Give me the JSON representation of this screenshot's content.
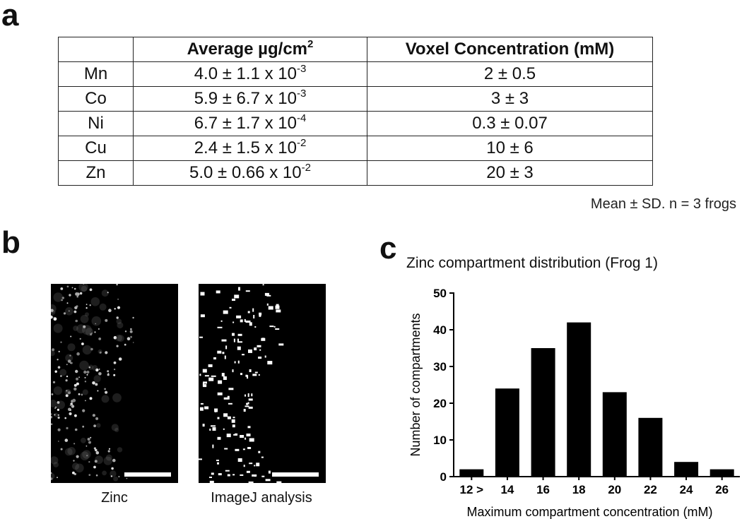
{
  "panels": {
    "a": "a",
    "b": "b",
    "c": "c"
  },
  "table": {
    "headers": [
      "",
      "Average µg/cm",
      "Voxel Concentration (mM)"
    ],
    "header_sup": "2",
    "rows": [
      {
        "element": "Mn",
        "avg_base": "4.0 ± 1.1 x 10",
        "avg_exp": "-3",
        "voxel": "2 ± 0.5"
      },
      {
        "element": "Co",
        "avg_base": "5.9 ± 6.7 x 10",
        "avg_exp": "-3",
        "voxel": "3 ± 3"
      },
      {
        "element": "Ni",
        "avg_base": "6.7 ± 1.7 x 10",
        "avg_exp": "-4",
        "voxel": "0.3 ± 0.07"
      },
      {
        "element": "Cu",
        "avg_base": "2.4 ± 1.5 x 10",
        "avg_exp": "-2",
        "voxel": "10 ± 6"
      },
      {
        "element": "Zn",
        "avg_base": "5.0 ± 0.66 x 10",
        "avg_exp": "-2",
        "voxel": "20 ± 3"
      }
    ],
    "note": "Mean ± SD. n = 3 frogs"
  },
  "images": {
    "zinc_caption": "Zinc",
    "imagej_caption": "ImageJ analysis"
  },
  "chart_data": {
    "type": "bar",
    "title": "Zinc compartment distribution (Frog 1)",
    "xlabel": "Maximum compartment concentration (mM)",
    "ylabel": "Number of compartments",
    "categories": [
      "12 >",
      "14",
      "16",
      "18",
      "20",
      "22",
      "24",
      "26"
    ],
    "values": [
      2,
      24,
      35,
      42,
      23,
      16,
      4,
      2
    ],
    "ylim": [
      0,
      50
    ],
    "yticks": [
      0,
      10,
      20,
      30,
      40,
      50
    ],
    "bar_color": "#000000",
    "grid": false
  }
}
